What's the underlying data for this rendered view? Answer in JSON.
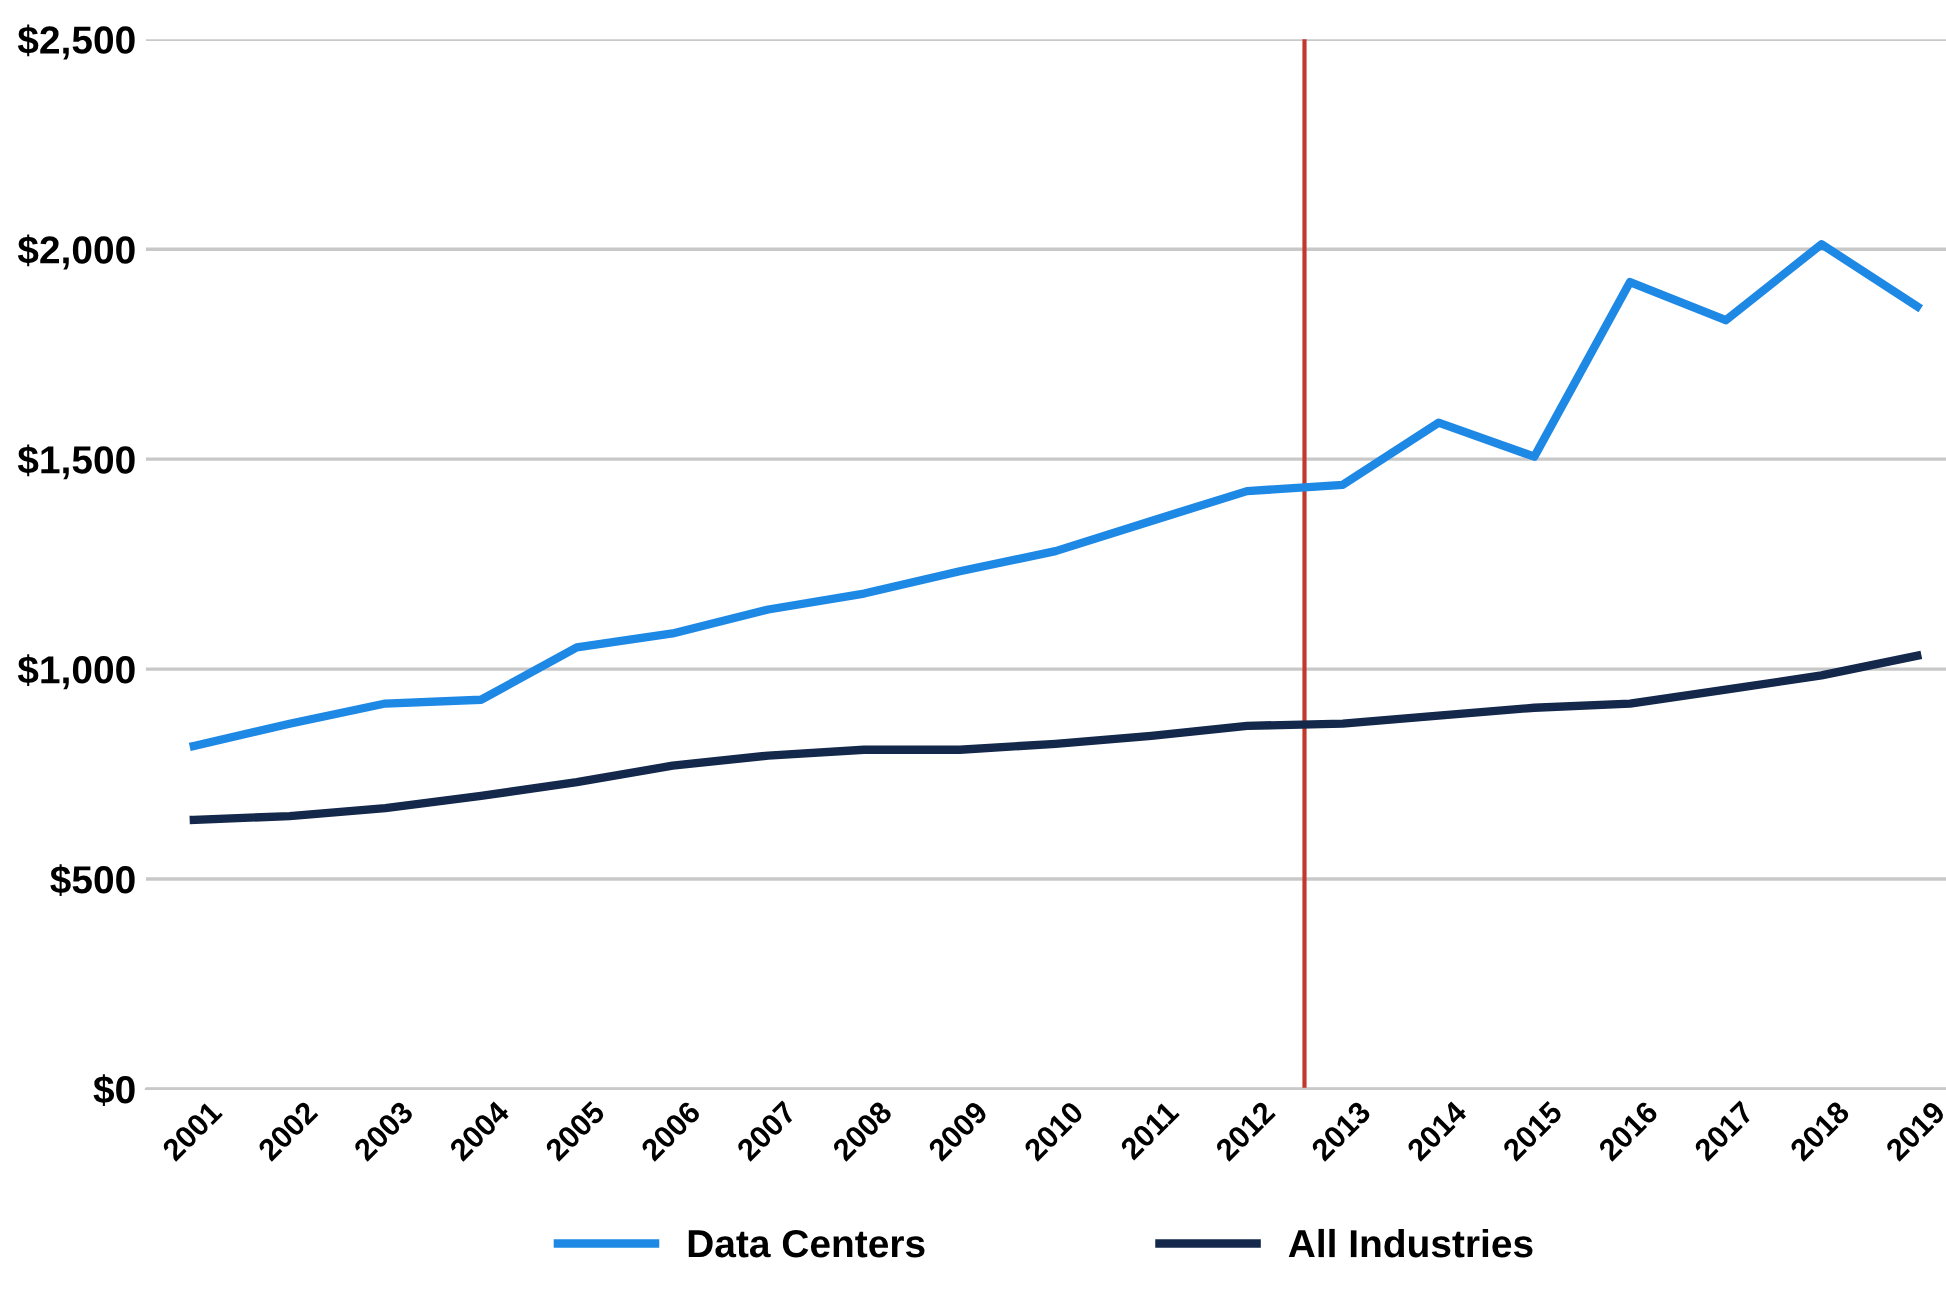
{
  "chart_data": {
    "type": "line",
    "x": [
      2001,
      2002,
      2003,
      2004,
      2005,
      2006,
      2007,
      2008,
      2009,
      2010,
      2011,
      2012,
      2013,
      2014,
      2015,
      2016,
      2017,
      2018,
      2019
    ],
    "series": [
      {
        "name": "Data Centers",
        "color": "#1e88e5",
        "values": [
          817,
          870,
          918,
          927,
          1052,
          1085,
          1142,
          1180,
          1233,
          1281,
          1353,
          1424,
          1439,
          1587,
          1506,
          1922,
          1831,
          2012,
          1864
        ]
      },
      {
        "name": "All Industries",
        "color": "#14284b",
        "values": [
          641,
          650,
          669,
          698,
          731,
          770,
          794,
          808,
          808,
          822,
          841,
          865,
          870,
          889,
          908,
          918,
          951,
          985,
          1032
        ]
      }
    ],
    "xlim": [
      2000.5,
      2019.3
    ],
    "xticks": [
      2001,
      2002,
      2003,
      2004,
      2005,
      2006,
      2007,
      2008,
      2009,
      2010,
      2011,
      2012,
      2013,
      2014,
      2015,
      2016,
      2017,
      2018,
      2019
    ],
    "ylim": [
      0,
      2500
    ],
    "yticks": [
      {
        "value": 0,
        "label": "$0"
      },
      {
        "value": 500,
        "label": "$500"
      },
      {
        "value": 1000,
        "label": "$1,000"
      },
      {
        "value": 1500,
        "label": "$1,500"
      },
      {
        "value": 2000,
        "label": "$2,000"
      },
      {
        "value": 2500,
        "label": "$2,500"
      }
    ],
    "ref_lines": [
      {
        "axis": "x",
        "value": 2012.6,
        "color": "#c0392b"
      }
    ],
    "grid": "y",
    "legend": "bottom",
    "marker": "none",
    "line_style": "solid"
  }
}
